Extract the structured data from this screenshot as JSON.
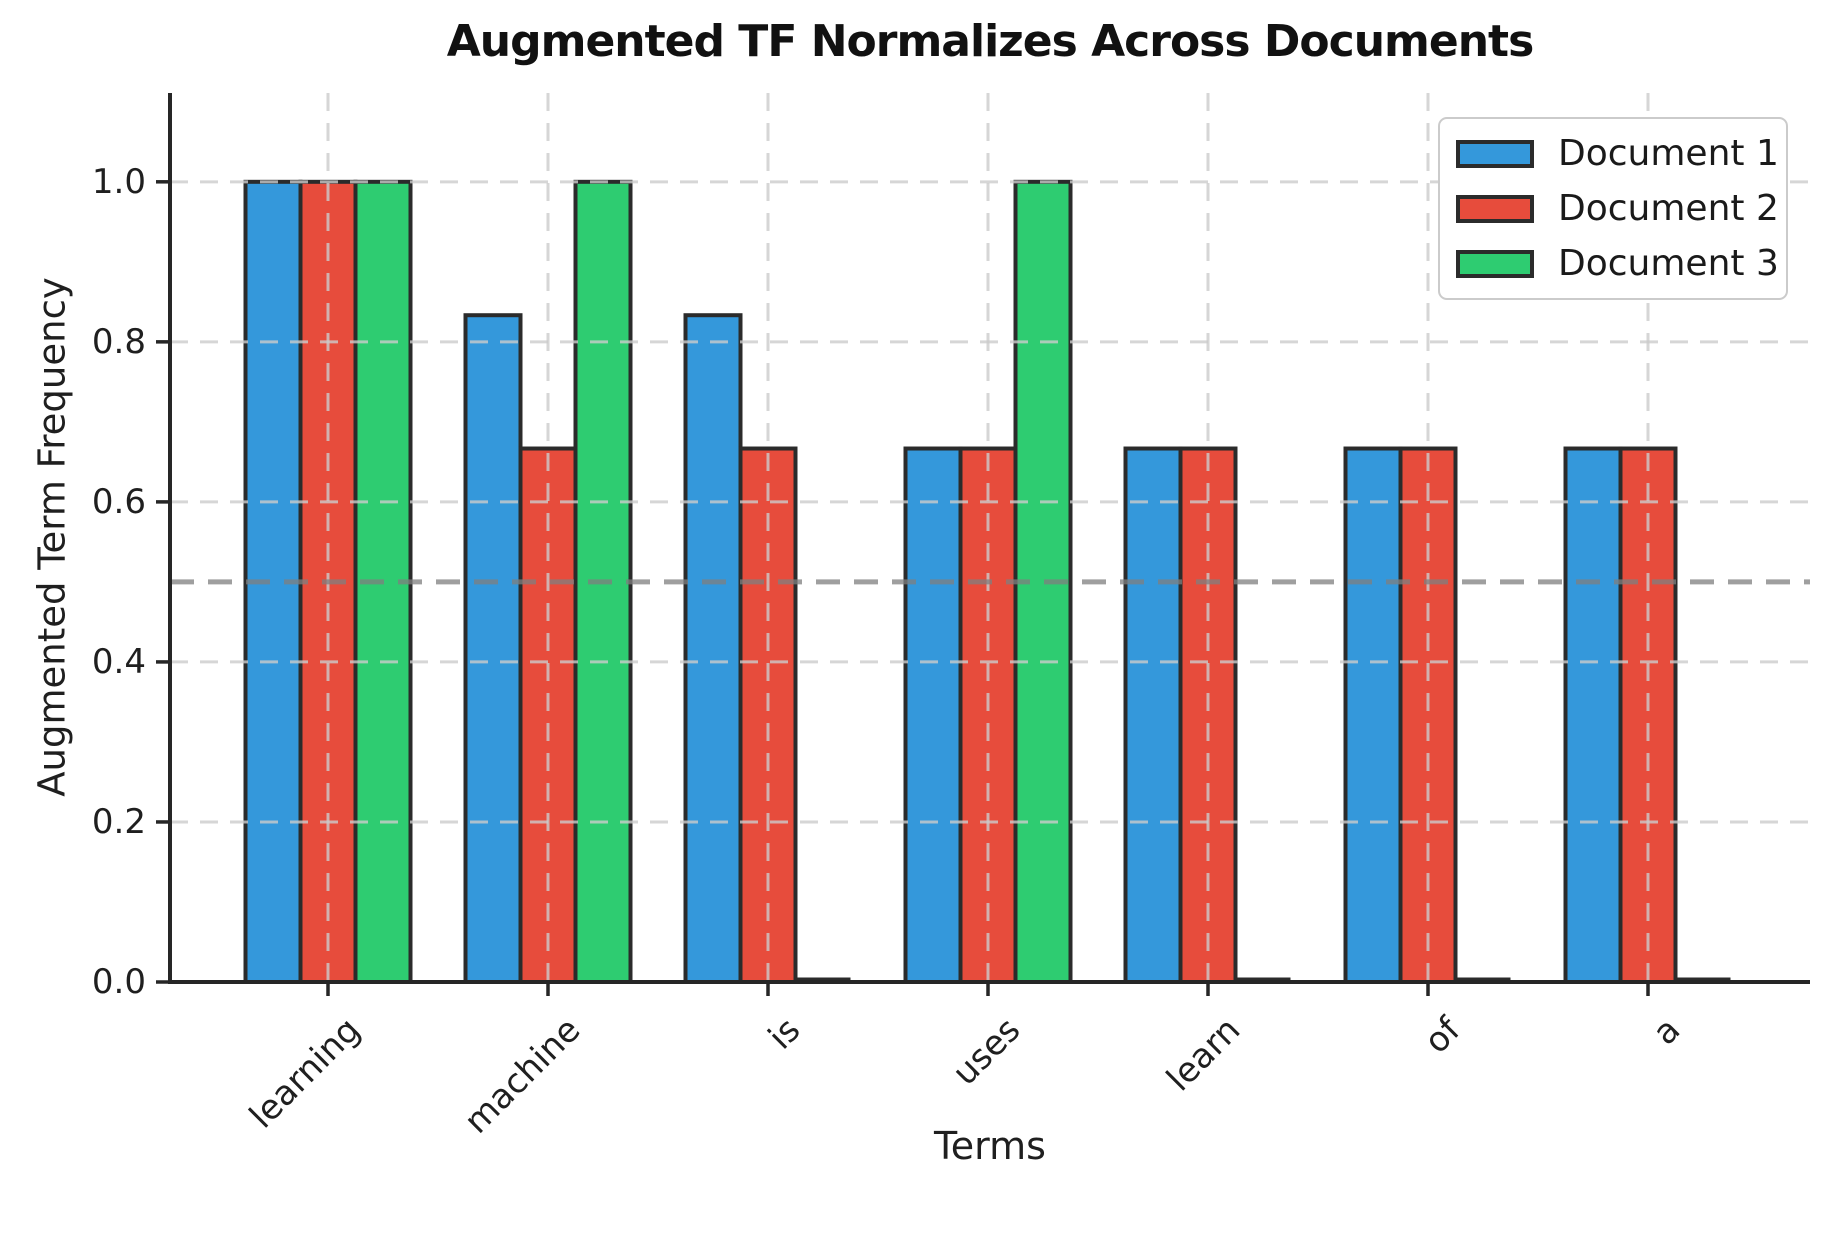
{
  "figure": {
    "title": "Augmented TF Normalizes Across Documents",
    "xlabel": "Terms",
    "ylabel": "Augmented Term Frequency"
  },
  "chart_data": {
    "type": "bar",
    "title": "Augmented TF Normalizes Across Documents",
    "xlabel": "Terms",
    "ylabel": "Augmented Term Frequency",
    "categories": [
      "learning",
      "machine",
      "is",
      "uses",
      "learn",
      "of",
      "a"
    ],
    "series": [
      {
        "name": "Document 1",
        "color": "#3498db",
        "values": [
          1.0,
          0.8333,
          0.8333,
          0.6667,
          0.6667,
          0.6667,
          0.6667
        ]
      },
      {
        "name": "Document 2",
        "color": "#e74c3c",
        "values": [
          1.0,
          0.6667,
          0.6667,
          0.6667,
          0.6667,
          0.6667,
          0.6667
        ]
      },
      {
        "name": "Document 3",
        "color": "#2ecc71",
        "values": [
          1.0,
          1.0,
          0.0,
          1.0,
          0.0,
          0.0,
          0.0
        ]
      }
    ],
    "yticks": [
      0.0,
      0.2,
      0.4,
      0.6,
      0.8,
      1.0
    ],
    "ytick_labels": [
      "0.0",
      "0.2",
      "0.4",
      "0.6",
      "0.8",
      "1.0"
    ],
    "ylim": [
      0,
      1.111
    ],
    "reference_line": {
      "value": 0.5,
      "style": "dashed",
      "color": "#7f7f7f"
    },
    "grid": true,
    "grid_style": "dashed",
    "legend_position": "upper right",
    "bar_edge_color": "#2b2b2b",
    "background": "#ffffff"
  },
  "legend": {
    "items": [
      {
        "label": "Document 1",
        "color": "#3498db"
      },
      {
        "label": "Document 2",
        "color": "#e74c3c"
      },
      {
        "label": "Document 3",
        "color": "#2ecc71"
      }
    ]
  }
}
